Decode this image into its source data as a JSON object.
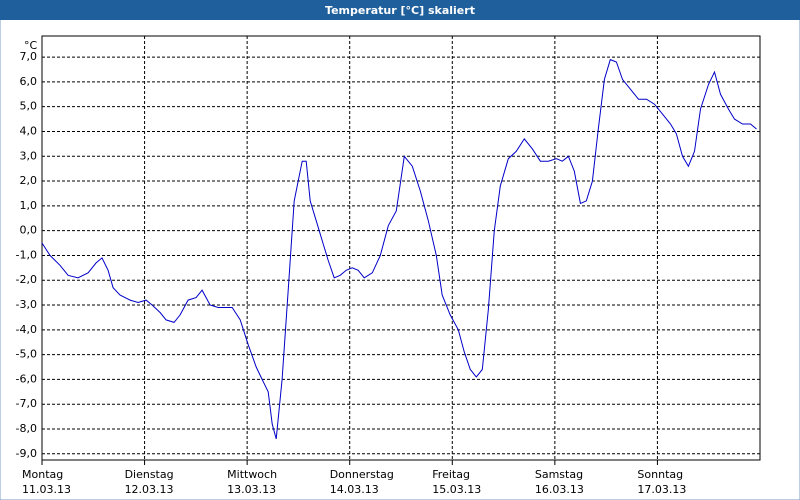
{
  "chart_data": {
    "type": "line",
    "title": "Temperatur [°C] skaliert",
    "y_unit": "°C",
    "color": "#0000c8",
    "grid": true,
    "xlim": [
      0,
      7
    ],
    "xticks": [
      {
        "value": 0,
        "label": "Montag"
      },
      {
        "value": 1,
        "label": "Dienstag"
      },
      {
        "value": 2,
        "label": "Mittwoch"
      },
      {
        "value": 3,
        "label": "Donnerstag"
      },
      {
        "value": 4,
        "label": "Freitag"
      },
      {
        "value": 5,
        "label": "Samstag"
      },
      {
        "value": 6,
        "label": "Sonntag"
      }
    ],
    "xtick_dates": [
      "11.03.13",
      "12.03.13",
      "13.03.13",
      "14.03.13",
      "15.03.13",
      "16.03.13",
      "17.03.13"
    ],
    "ylim": [
      -9.25,
      7.85
    ],
    "yticks": [
      {
        "value": 7,
        "label": "7,0"
      },
      {
        "value": 6,
        "label": "6,0"
      },
      {
        "value": 5,
        "label": "5,0"
      },
      {
        "value": 4,
        "label": "4,0"
      },
      {
        "value": 3,
        "label": "3,0"
      },
      {
        "value": 2,
        "label": "2,0"
      },
      {
        "value": 1,
        "label": "1,0"
      },
      {
        "value": 0,
        "label": "0,0"
      },
      {
        "value": -1,
        "label": "-1,0"
      },
      {
        "value": -2,
        "label": "-2,0"
      },
      {
        "value": -3,
        "label": "-3,0"
      },
      {
        "value": -4,
        "label": "-4,0"
      },
      {
        "value": -5,
        "label": "-5,0"
      },
      {
        "value": -6,
        "label": "-6,0"
      },
      {
        "value": -7,
        "label": "-7,0"
      },
      {
        "value": -8,
        "label": "-8,0"
      },
      {
        "value": -9,
        "label": "-9,0"
      }
    ],
    "x": [
      0,
      0.078,
      0.176,
      0.254,
      0.351,
      0.449,
      0.527,
      0.585,
      0.644,
      0.693,
      0.761,
      0.859,
      0.937,
      1.015,
      1.073,
      1.151,
      1.21,
      1.288,
      1.346,
      1.424,
      1.502,
      1.561,
      1.639,
      1.717,
      1.785,
      1.854,
      1.932,
      2.01,
      2.088,
      2.146,
      2.205,
      2.244,
      2.283,
      2.341,
      2.4,
      2.459,
      2.537,
      2.576,
      2.615,
      2.673,
      2.732,
      2.79,
      2.849,
      2.907,
      2.966,
      3.024,
      3.083,
      3.141,
      3.22,
      3.298,
      3.376,
      3.454,
      3.532,
      3.61,
      3.688,
      3.766,
      3.844,
      3.902,
      3.98,
      4.059,
      4.117,
      4.176,
      4.234,
      4.293,
      4.351,
      4.41,
      4.468,
      4.546,
      4.624,
      4.702,
      4.78,
      4.859,
      4.937,
      5.015,
      5.073,
      5.132,
      5.19,
      5.249,
      5.307,
      5.366,
      5.424,
      5.483,
      5.541,
      5.6,
      5.659,
      5.737,
      5.815,
      5.893,
      5.971,
      6.049,
      6.127,
      6.185,
      6.244,
      6.302,
      6.361,
      6.42,
      6.498,
      6.556,
      6.615,
      6.693,
      6.751,
      6.829,
      6.907,
      6.966
    ],
    "values": [
      -0.5,
      -1.0,
      -1.4,
      -1.8,
      -1.9,
      -1.7,
      -1.3,
      -1.1,
      -1.6,
      -2.3,
      -2.6,
      -2.8,
      -2.9,
      -2.8,
      -3.0,
      -3.3,
      -3.6,
      -3.7,
      -3.4,
      -2.8,
      -2.7,
      -2.4,
      -3.0,
      -3.1,
      -3.1,
      -3.1,
      -3.6,
      -4.6,
      -5.5,
      -6.0,
      -6.5,
      -7.8,
      -8.4,
      -6.0,
      -2.4,
      1.2,
      2.8,
      2.8,
      1.2,
      0.4,
      -0.4,
      -1.2,
      -1.9,
      -1.8,
      -1.6,
      -1.5,
      -1.6,
      -1.9,
      -1.7,
      -1.0,
      0.2,
      0.8,
      3.0,
      2.6,
      1.6,
      0.4,
      -1.0,
      -2.6,
      -3.4,
      -4.0,
      -4.9,
      -5.6,
      -5.9,
      -5.6,
      -3.2,
      0.0,
      1.8,
      2.9,
      3.2,
      3.7,
      3.3,
      2.8,
      2.8,
      2.9,
      2.8,
      3.0,
      2.4,
      1.1,
      1.2,
      2.0,
      4.1,
      6.1,
      6.9,
      6.8,
      6.1,
      5.7,
      5.3,
      5.3,
      5.1,
      4.7,
      4.3,
      3.9,
      3.0,
      2.6,
      3.2,
      4.9,
      5.9,
      6.4,
      5.5,
      4.9,
      4.5,
      4.3,
      4.3,
      4.1
    ]
  }
}
